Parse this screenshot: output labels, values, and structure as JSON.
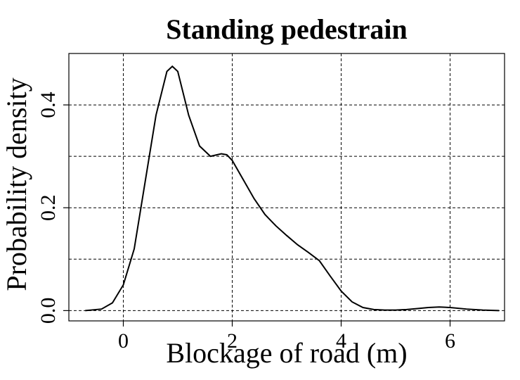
{
  "chart_data": {
    "type": "line",
    "title": "Standing pedestrain",
    "xlabel": "Blockage of road (m)",
    "ylabel": "Probability density",
    "xlim": [
      -1.0,
      7.0
    ],
    "ylim": [
      -0.02,
      0.5
    ],
    "x_ticks": [
      0,
      2,
      4,
      6
    ],
    "x_tick_labels": [
      "0",
      "2",
      "4",
      "6"
    ],
    "y_ticks": [
      0.0,
      0.2,
      0.4
    ],
    "y_tick_labels": [
      "0.0",
      "0.2",
      "0.4"
    ],
    "x_grid": [
      0,
      2,
      4,
      6
    ],
    "y_grid": [
      0.0,
      0.1,
      0.2,
      0.3,
      0.4
    ],
    "grid": true,
    "series": [
      {
        "x": [
          -0.7,
          -0.4,
          -0.2,
          0.0,
          0.2,
          0.4,
          0.6,
          0.8,
          0.9,
          1.0,
          1.2,
          1.4,
          1.6,
          1.8,
          1.9,
          2.0,
          2.2,
          2.4,
          2.6,
          2.8,
          3.0,
          3.2,
          3.4,
          3.6,
          3.8,
          4.0,
          4.2,
          4.4,
          4.6,
          4.8,
          5.0,
          5.2,
          5.4,
          5.6,
          5.8,
          6.0,
          6.3,
          6.6,
          6.9
        ],
        "y": [
          0.0,
          0.003,
          0.015,
          0.05,
          0.12,
          0.25,
          0.38,
          0.465,
          0.475,
          0.465,
          0.38,
          0.32,
          0.3,
          0.305,
          0.303,
          0.292,
          0.255,
          0.218,
          0.187,
          0.165,
          0.146,
          0.128,
          0.113,
          0.097,
          0.067,
          0.038,
          0.017,
          0.006,
          0.002,
          0.001,
          0.001,
          0.002,
          0.004,
          0.006,
          0.007,
          0.006,
          0.003,
          0.001,
          0.0
        ]
      }
    ]
  }
}
